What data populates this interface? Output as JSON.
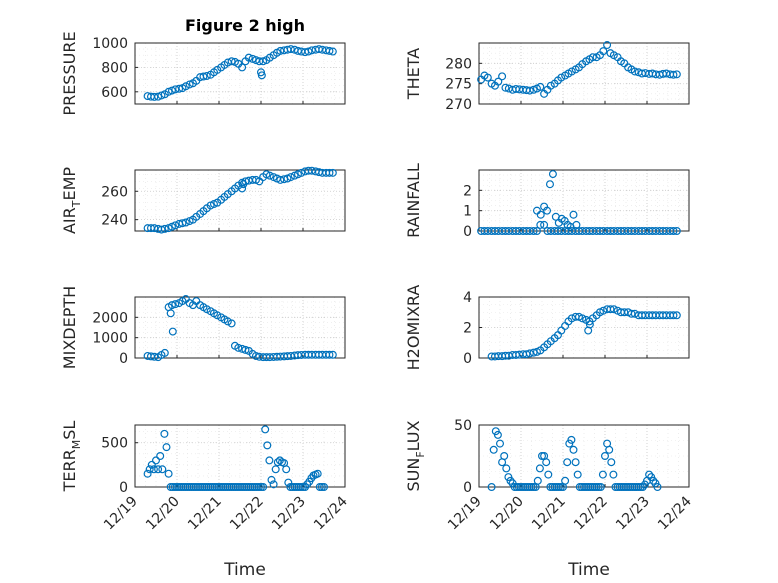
{
  "figure": {
    "title": "Figure 2 high",
    "marker_color": "#0072BD",
    "xlabel": "Time",
    "x_tick_labels": [
      "12/19",
      "12/20",
      "12/21",
      "12/22",
      "12/23",
      "12/24"
    ]
  },
  "chart_data": [
    {
      "type": "scatter",
      "panel": "pressure",
      "ylabel": "PRESSURE",
      "title": "Figure 2 high",
      "xlim": [
        0,
        5
      ],
      "ylim": [
        500,
        1000
      ],
      "yticks": [
        600,
        800,
        1000
      ],
      "x": [
        0.3,
        0.38,
        0.46,
        0.55,
        0.63,
        0.71,
        0.8,
        0.88,
        0.96,
        1.05,
        1.13,
        1.21,
        1.3,
        1.38,
        1.46,
        1.55,
        1.63,
        1.71,
        1.8,
        1.88,
        1.96,
        2.05,
        2.13,
        2.21,
        2.3,
        2.38,
        2.46,
        2.55,
        2.63,
        2.71,
        2.8,
        2.88,
        2.96,
        3.05,
        3.13,
        3.21,
        3.3,
        3.38,
        3.46,
        3.55,
        3.63,
        3.71,
        3.8,
        3.88,
        3.96,
        4.05,
        4.13,
        4.21,
        4.3,
        4.38,
        4.46,
        4.55,
        4.63,
        4.71,
        3.0,
        3.02
      ],
      "y": [
        565,
        560,
        558,
        560,
        570,
        580,
        600,
        610,
        620,
        625,
        630,
        645,
        660,
        670,
        690,
        720,
        725,
        730,
        740,
        760,
        780,
        800,
        820,
        840,
        850,
        845,
        830,
        800,
        850,
        880,
        870,
        860,
        850,
        850,
        860,
        880,
        900,
        920,
        935,
        940,
        945,
        950,
        945,
        935,
        930,
        925,
        930,
        940,
        945,
        950,
        945,
        940,
        935,
        930,
        760,
        735
      ]
    },
    {
      "type": "scatter",
      "panel": "theta",
      "ylabel": "THETA",
      "xlim": [
        0,
        5
      ],
      "ylim": [
        270,
        285
      ],
      "yticks": [
        270,
        275,
        280
      ],
      "x": [
        0.05,
        0.13,
        0.21,
        0.3,
        0.38,
        0.46,
        0.55,
        0.63,
        0.71,
        0.8,
        0.88,
        0.96,
        1.05,
        1.13,
        1.21,
        1.3,
        1.38,
        1.46,
        1.55,
        1.63,
        1.71,
        1.8,
        1.88,
        1.96,
        2.05,
        2.13,
        2.21,
        2.3,
        2.38,
        2.46,
        2.55,
        2.63,
        2.71,
        2.8,
        2.88,
        2.96,
        3.05,
        3.13,
        3.21,
        3.3,
        3.38,
        3.46,
        3.55,
        3.63,
        3.71,
        3.8,
        3.88,
        3.96,
        4.05,
        4.13,
        4.21,
        4.3,
        4.38,
        4.46,
        4.55,
        4.63,
        4.71
      ],
      "y": [
        276.0,
        277.0,
        276.5,
        275.0,
        274.5,
        275.5,
        276.8,
        274.0,
        273.8,
        273.5,
        273.7,
        273.6,
        273.5,
        273.4,
        273.3,
        273.5,
        273.8,
        274.2,
        272.5,
        273.5,
        274.5,
        275.0,
        275.8,
        276.5,
        277.0,
        277.5,
        278.0,
        278.5,
        279.0,
        279.8,
        280.5,
        281.0,
        281.5,
        281.5,
        282.0,
        283.0,
        284.5,
        282.5,
        282.0,
        281.5,
        280.5,
        280.0,
        279.0,
        278.5,
        278.0,
        277.8,
        277.5,
        277.6,
        277.4,
        277.5,
        277.3,
        277.2,
        277.4,
        277.5,
        277.3,
        277.2,
        277.3
      ]
    },
    {
      "type": "scatter",
      "panel": "air_temp",
      "ylabel": "AIR",
      "ylabel_sub": "T",
      "ylabel_tail": "EMP",
      "xlim": [
        0,
        5
      ],
      "ylim": [
        232,
        275
      ],
      "yticks": [
        240,
        260
      ],
      "x": [
        0.3,
        0.38,
        0.46,
        0.55,
        0.63,
        0.71,
        0.8,
        0.88,
        0.96,
        1.05,
        1.13,
        1.21,
        1.3,
        1.38,
        1.46,
        1.55,
        1.63,
        1.71,
        1.8,
        1.88,
        1.96,
        2.05,
        2.13,
        2.21,
        2.3,
        2.38,
        2.46,
        2.55,
        2.63,
        2.71,
        2.8,
        2.88,
        2.96,
        3.05,
        3.13,
        3.21,
        3.3,
        3.38,
        3.46,
        3.55,
        3.63,
        3.71,
        3.8,
        3.88,
        3.96,
        4.05,
        4.13,
        4.21,
        4.3,
        4.38,
        4.46,
        4.55,
        4.63,
        4.71,
        2.55,
        2.58
      ],
      "y": [
        234,
        234,
        234,
        233.5,
        233,
        233.5,
        234,
        235,
        236,
        237,
        237.5,
        238,
        239,
        240,
        242,
        244,
        246,
        248,
        250,
        251,
        252,
        254,
        256,
        258,
        260,
        262,
        264,
        266,
        267,
        267.5,
        268,
        268,
        267,
        270,
        272,
        271,
        270,
        269,
        268,
        268.5,
        269,
        270,
        271,
        272,
        273,
        274,
        274.5,
        274.5,
        274,
        273.5,
        273,
        273,
        273,
        273,
        262,
        265
      ]
    },
    {
      "type": "scatter",
      "panel": "rainfall",
      "ylabel": "RAINFALL",
      "xlim": [
        0,
        5
      ],
      "ylim": [
        0,
        3
      ],
      "yticks": [
        0,
        1,
        2
      ],
      "x": [
        0.05,
        0.13,
        0.21,
        0.3,
        0.38,
        0.46,
        0.55,
        0.63,
        0.71,
        0.8,
        0.88,
        0.96,
        1.05,
        1.13,
        1.21,
        1.3,
        1.38,
        1.46,
        1.55,
        1.63,
        1.71,
        1.8,
        1.88,
        1.96,
        2.05,
        2.13,
        2.21,
        2.3,
        2.38,
        2.46,
        2.55,
        2.63,
        2.71,
        2.8,
        2.88,
        2.96,
        3.05,
        3.13,
        3.21,
        3.3,
        3.38,
        3.46,
        3.55,
        3.63,
        3.71,
        3.8,
        3.88,
        3.96,
        4.05,
        4.13,
        4.21,
        4.3,
        4.38,
        4.46,
        4.55,
        4.63,
        4.71,
        1.38,
        1.47,
        1.55,
        1.62,
        1.69,
        1.76,
        1.83,
        1.9,
        1.97,
        2.04,
        2.11,
        2.18,
        2.25,
        2.32
      ],
      "y": [
        0,
        0,
        0,
        0,
        0,
        0,
        0,
        0,
        0,
        0,
        0,
        0,
        0,
        0,
        0,
        0,
        0,
        0.3,
        0.3,
        0,
        0,
        0,
        0,
        0,
        0,
        0,
        0,
        0,
        0,
        0,
        0,
        0,
        0,
        0,
        0,
        0,
        0,
        0,
        0,
        0,
        0,
        0,
        0,
        0,
        0,
        0,
        0,
        0,
        0,
        0,
        0,
        0,
        0,
        0,
        0,
        0,
        0,
        1.0,
        0.8,
        1.2,
        1.0,
        2.3,
        2.8,
        0.7,
        0.4,
        0.6,
        0.5,
        0.3,
        0.2,
        0.8,
        0.3
      ]
    },
    {
      "type": "scatter",
      "panel": "mixdepth",
      "ylabel": "MIXDEPTH",
      "xlim": [
        0,
        5
      ],
      "ylim": [
        0,
        3000
      ],
      "yticks": [
        0,
        1000,
        2000
      ],
      "x": [
        0.3,
        0.38,
        0.46,
        0.55,
        0.63,
        0.71,
        0.8,
        0.88,
        0.96,
        1.05,
        1.13,
        1.21,
        1.3,
        1.38,
        1.46,
        1.55,
        1.63,
        1.71,
        1.8,
        1.88,
        1.96,
        2.05,
        2.13,
        2.21,
        2.3,
        2.38,
        2.46,
        2.55,
        2.63,
        2.71,
        2.8,
        2.88,
        2.96,
        3.05,
        3.13,
        3.21,
        3.3,
        3.38,
        3.46,
        3.55,
        3.63,
        3.71,
        3.8,
        3.88,
        3.96,
        4.05,
        4.13,
        4.21,
        4.3,
        4.38,
        4.46,
        4.55,
        4.63,
        4.71,
        0.85,
        0.9
      ],
      "y": [
        100,
        80,
        60,
        40,
        150,
        250,
        2500,
        2600,
        2650,
        2700,
        2800,
        2900,
        2700,
        2600,
        2800,
        2600,
        2500,
        2400,
        2300,
        2200,
        2100,
        2000,
        1900,
        1800,
        1700,
        600,
        500,
        450,
        400,
        350,
        200,
        100,
        60,
        40,
        40,
        40,
        50,
        60,
        70,
        80,
        90,
        100,
        120,
        140,
        150,
        160,
        160,
        160,
        160,
        160,
        160,
        160,
        160,
        160,
        2200,
        1300
      ]
    },
    {
      "type": "scatter",
      "panel": "h2omixra",
      "ylabel": "H2OMIXRA",
      "xlim": [
        0,
        5
      ],
      "ylim": [
        0,
        4
      ],
      "yticks": [
        0,
        2,
        4
      ],
      "x": [
        0.3,
        0.38,
        0.46,
        0.55,
        0.63,
        0.71,
        0.8,
        0.88,
        0.96,
        1.05,
        1.13,
        1.21,
        1.3,
        1.38,
        1.46,
        1.55,
        1.63,
        1.71,
        1.8,
        1.88,
        1.96,
        2.05,
        2.13,
        2.21,
        2.3,
        2.38,
        2.46,
        2.55,
        2.63,
        2.71,
        2.8,
        2.88,
        2.96,
        3.05,
        3.13,
        3.21,
        3.3,
        3.38,
        3.46,
        3.55,
        3.63,
        3.71,
        3.8,
        3.88,
        3.96,
        4.05,
        4.13,
        4.21,
        4.3,
        4.38,
        4.46,
        4.55,
        4.63,
        4.71,
        2.6,
        2.64
      ],
      "y": [
        0.1,
        0.1,
        0.12,
        0.12,
        0.15,
        0.15,
        0.2,
        0.2,
        0.22,
        0.25,
        0.25,
        0.3,
        0.35,
        0.4,
        0.5,
        0.7,
        0.9,
        1.1,
        1.3,
        1.5,
        1.8,
        2.1,
        2.4,
        2.6,
        2.7,
        2.7,
        2.6,
        2.5,
        2.4,
        2.6,
        2.8,
        3.0,
        3.1,
        3.2,
        3.2,
        3.2,
        3.1,
        3.0,
        3.0,
        3.0,
        2.9,
        2.9,
        2.8,
        2.8,
        2.8,
        2.8,
        2.8,
        2.8,
        2.8,
        2.8,
        2.8,
        2.8,
        2.8,
        2.8,
        1.8,
        2.2
      ]
    },
    {
      "type": "scatter",
      "panel": "terr_msl",
      "ylabel": "TERR",
      "ylabel_sub": "M",
      "ylabel_tail": "SL",
      "xlim": [
        0,
        5
      ],
      "ylim": [
        0,
        700
      ],
      "yticks": [
        0,
        500
      ],
      "x": [
        0.3,
        0.35,
        0.4,
        0.45,
        0.5,
        0.55,
        0.6,
        0.65,
        0.7,
        0.75,
        0.8,
        0.85,
        0.9,
        0.95,
        1.0,
        1.05,
        1.1,
        1.15,
        1.2,
        1.25,
        1.3,
        1.35,
        1.4,
        1.45,
        1.5,
        1.55,
        1.6,
        1.65,
        1.7,
        1.75,
        1.8,
        1.85,
        1.9,
        1.95,
        2.0,
        2.05,
        2.1,
        2.15,
        2.2,
        2.25,
        2.3,
        2.35,
        2.4,
        2.45,
        2.5,
        2.55,
        2.6,
        2.65,
        2.7,
        2.75,
        2.8,
        2.85,
        2.9,
        2.95,
        3.0,
        3.05,
        3.1,
        3.15,
        3.2,
        3.25,
        3.3,
        3.35,
        3.4,
        3.45,
        3.5,
        3.55,
        3.6,
        3.65,
        3.7,
        3.75,
        3.8,
        3.85,
        3.9,
        3.95,
        4.0,
        4.05,
        4.1,
        4.15,
        4.2,
        4.25,
        4.3,
        4.35,
        4.4,
        4.45,
        4.5
      ],
      "y": [
        150,
        200,
        250,
        200,
        300,
        200,
        350,
        200,
        600,
        450,
        150,
        0,
        0,
        0,
        0,
        0,
        0,
        0,
        0,
        0,
        0,
        0,
        0,
        0,
        0,
        0,
        0,
        0,
        0,
        0,
        0,
        0,
        0,
        0,
        0,
        0,
        0,
        0,
        0,
        0,
        0,
        0,
        0,
        0,
        0,
        0,
        0,
        0,
        0,
        0,
        0,
        0,
        0,
        0,
        0,
        0,
        650,
        470,
        300,
        80,
        30,
        200,
        280,
        300,
        280,
        270,
        200,
        50,
        0,
        0,
        0,
        0,
        0,
        0,
        0,
        0,
        30,
        60,
        100,
        130,
        140,
        150,
        0,
        0,
        0
      ]
    },
    {
      "type": "scatter",
      "panel": "sun_flux",
      "ylabel": "SUN",
      "ylabel_sub": "F",
      "ylabel_tail": "LUX",
      "xlim": [
        0,
        5
      ],
      "ylim": [
        0,
        50
      ],
      "yticks": [
        0,
        50
      ],
      "x": [
        0.3,
        0.35,
        0.4,
        0.45,
        0.5,
        0.55,
        0.6,
        0.65,
        0.7,
        0.75,
        0.8,
        0.85,
        0.9,
        0.95,
        1.0,
        1.05,
        1.1,
        1.15,
        1.2,
        1.25,
        1.3,
        1.35,
        1.4,
        1.45,
        1.5,
        1.55,
        1.6,
        1.65,
        1.7,
        1.75,
        1.8,
        1.85,
        1.9,
        1.95,
        2.0,
        2.05,
        2.1,
        2.15,
        2.2,
        2.25,
        2.3,
        2.35,
        2.4,
        2.45,
        2.5,
        2.55,
        2.6,
        2.65,
        2.7,
        2.75,
        2.8,
        2.85,
        2.9,
        2.95,
        3.0,
        3.05,
        3.1,
        3.15,
        3.2,
        3.25,
        3.3,
        3.35,
        3.4,
        3.45,
        3.5,
        3.55,
        3.6,
        3.65,
        3.7,
        3.75,
        3.8,
        3.85,
        3.9,
        3.95,
        4.0,
        4.05,
        4.1,
        4.15,
        4.2,
        4.25
      ],
      "y": [
        0,
        30,
        45,
        42,
        35,
        20,
        25,
        15,
        8,
        5,
        3,
        0,
        0,
        0,
        0,
        0,
        0,
        0,
        0,
        0,
        0,
        0,
        5,
        15,
        25,
        25,
        20,
        10,
        0,
        0,
        0,
        0,
        0,
        0,
        0,
        5,
        20,
        35,
        38,
        30,
        20,
        10,
        0,
        0,
        0,
        0,
        0,
        0,
        0,
        0,
        0,
        0,
        0,
        10,
        25,
        35,
        30,
        20,
        10,
        0,
        0,
        0,
        0,
        0,
        0,
        0,
        0,
        0,
        0,
        0,
        0,
        0,
        0,
        2,
        5,
        10,
        8,
        5,
        3,
        0
      ]
    }
  ]
}
